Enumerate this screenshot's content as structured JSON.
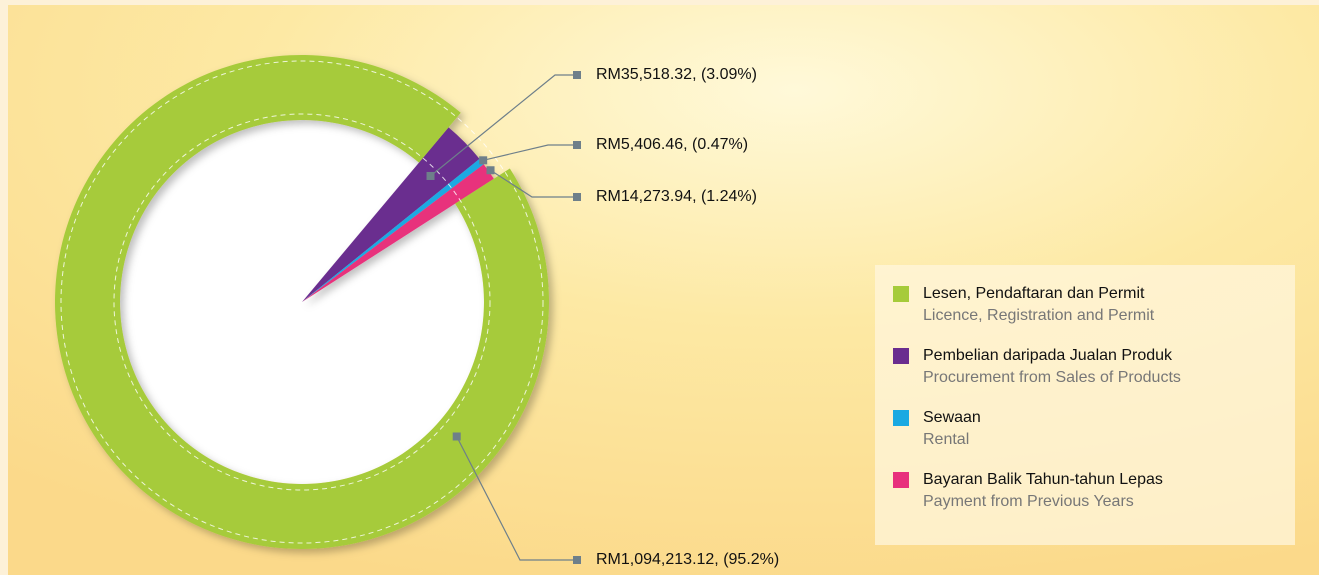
{
  "chart_data": {
    "type": "donut",
    "categories": [
      "Lesen, Pendaftaran dan Permit",
      "Pembelian daripada Jualan Produk",
      "Sewaan",
      "Bayaran Balik Tahun-tahun Lepas"
    ],
    "category_translations": [
      "Licence, Registration and Permit",
      "Procurement from Sales of Products",
      "Rental",
      "Payment from Previous Years"
    ],
    "values": [
      1094213.12,
      35518.32,
      5406.46,
      14273.94
    ],
    "value_labels": [
      "RM1,094,213.12, (95.2%)",
      "RM35,518.32, (3.09%)",
      "RM5,406.46, (0.47%)",
      "RM14,273.94, (1.24%)"
    ],
    "colors": [
      "#a6cb3a",
      "#6a2d8f",
      "#1aa9e2",
      "#e8307c"
    ]
  }
}
